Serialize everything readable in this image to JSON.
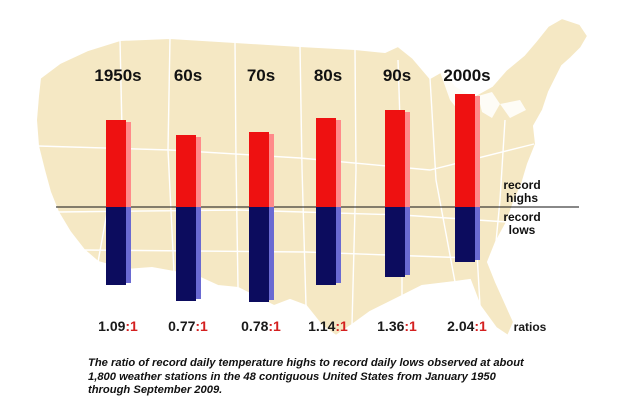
{
  "chart_data": {
    "type": "bar",
    "categories": [
      "1950s",
      "60s",
      "70s",
      "80s",
      "90s",
      "2000s"
    ],
    "series": [
      {
        "name": "record highs",
        "values": [
          87,
          72,
          75,
          89,
          97,
          113
        ]
      },
      {
        "name": "record lows",
        "values": [
          78,
          94,
          95,
          78,
          70,
          55
        ]
      }
    ],
    "ratios": [
      "1.09",
      "0.77",
      "0.78",
      "1.14",
      "1.36",
      "2.04"
    ],
    "ratio_suffix": ":1",
    "ratio_axis_label": "ratios",
    "side_labels": {
      "highs": [
        "record",
        "highs"
      ],
      "lows": [
        "record",
        "lows"
      ]
    },
    "caption": "The ratio of record daily temperature highs to record daily lows observed at about 1,800 weather stations in the 48 contiguous United States from January 1950 through September 2009.",
    "colors": {
      "highs": "#ee1111",
      "highs_side": "#ff8a8a",
      "lows": "#0c0c5e",
      "lows_side": "#6a6ad2",
      "map_fill": "#f5e8c4",
      "map_border": "#ffffff"
    },
    "legend_position": "right",
    "grid": false
  }
}
